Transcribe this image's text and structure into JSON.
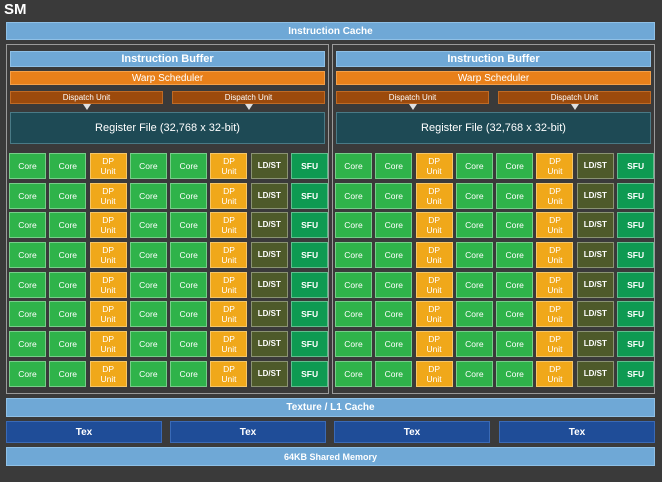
{
  "title": "SM",
  "instruction_cache": "Instruction Cache",
  "processing_blocks": [
    {
      "instruction_buffer": "Instruction Buffer",
      "warp_scheduler": "Warp Scheduler",
      "dispatch_units": [
        "Dispatch Unit",
        "Dispatch Unit"
      ],
      "register_file": "Register File (32,768 x 32-bit)",
      "unit_row": [
        "Core",
        "Core",
        "DP Unit",
        "Core",
        "Core",
        "DP Unit",
        "LD/ST",
        "SFU"
      ],
      "rows": 8
    },
    {
      "instruction_buffer": "Instruction Buffer",
      "warp_scheduler": "Warp Scheduler",
      "dispatch_units": [
        "Dispatch Unit",
        "Dispatch Unit"
      ],
      "register_file": "Register File (32,768 x 32-bit)",
      "unit_row": [
        "Core",
        "Core",
        "DP Unit",
        "Core",
        "Core",
        "DP Unit",
        "LD/ST",
        "SFU"
      ],
      "rows": 8
    }
  ],
  "texture_cache": "Texture / L1 Cache",
  "tex_units": [
    "Tex",
    "Tex",
    "Tex",
    "Tex"
  ],
  "shared_memory": "64KB Shared Memory",
  "colors": {
    "core": "#2fb34a",
    "dp_unit": "#f0a81a",
    "ld_st": "#4e5a2a",
    "sfu": "#0e9a52",
    "cache": "#6fa8d6",
    "warp_scheduler": "#e8801a",
    "dispatch_unit": "#9c4a0c",
    "register_file": "#1e4a55",
    "tex": "#1f4d98"
  }
}
